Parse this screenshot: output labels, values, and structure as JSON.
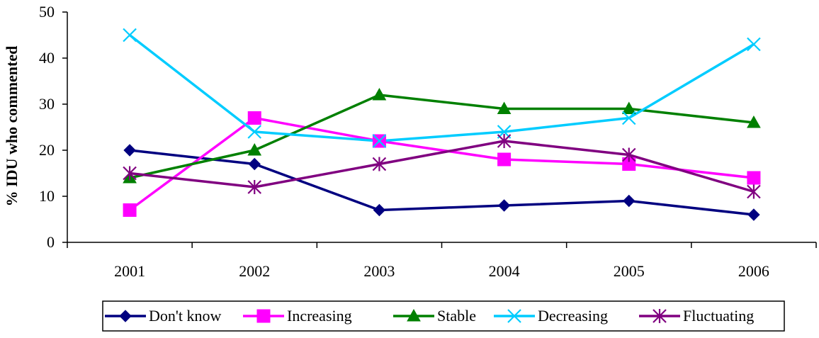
{
  "chart_data": {
    "type": "line",
    "title": "",
    "xlabel": "",
    "ylabel": "% IDU who commented",
    "categories": [
      "2001",
      "2002",
      "2003",
      "2004",
      "2005",
      "2006"
    ],
    "ylim": [
      0,
      50
    ],
    "yticks": [
      0,
      10,
      20,
      30,
      40,
      50
    ],
    "grid": false,
    "legend_position": "bottom",
    "series": [
      {
        "name": "Don't know",
        "color": "#000080",
        "marker": "diamond",
        "values": [
          20,
          17,
          7,
          8,
          9,
          6
        ]
      },
      {
        "name": "Increasing",
        "color": "#FF00FF",
        "marker": "square",
        "values": [
          7,
          27,
          22,
          18,
          17,
          14
        ]
      },
      {
        "name": "Stable",
        "color": "#008000",
        "marker": "triangle",
        "values": [
          14,
          20,
          32,
          29,
          29,
          26
        ]
      },
      {
        "name": "Decreasing",
        "color": "#00CCFF",
        "marker": "x",
        "values": [
          45,
          24,
          22,
          24,
          27,
          43
        ]
      },
      {
        "name": "Fluctuating",
        "color": "#800080",
        "marker": "asterisk",
        "values": [
          15,
          12,
          17,
          22,
          19,
          11
        ]
      }
    ]
  }
}
